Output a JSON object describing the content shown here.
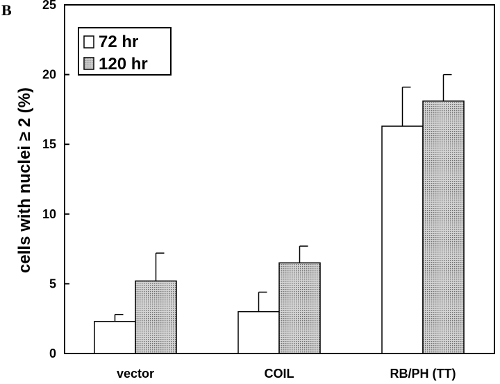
{
  "panel_letter": "B",
  "chart_data": {
    "type": "bar",
    "title": "",
    "xlabel": "",
    "ylabel": "cells with nuclei ≥ 2 (%)",
    "ylim": [
      0,
      25
    ],
    "yticks": [
      0,
      5,
      10,
      15,
      20,
      25
    ],
    "categories": [
      "vector",
      "COIL",
      "RB/PH (TT)"
    ],
    "series": [
      {
        "name": "72 hr",
        "fill": "#ffffff",
        "values": [
          2.3,
          3.0,
          16.3
        ],
        "errors": [
          0.5,
          1.4,
          2.8
        ]
      },
      {
        "name": "120 hr",
        "fill": "dotted-gray",
        "values": [
          5.2,
          6.5,
          18.1
        ],
        "errors": [
          2.0,
          1.2,
          1.9
        ]
      }
    ],
    "legend_position": "top-left",
    "grid": false,
    "colors": {
      "bar_outline": "#000000",
      "dotted_fill_base": "#d4d4d4",
      "dotted_fill_dot": "#6e6e6e"
    }
  }
}
